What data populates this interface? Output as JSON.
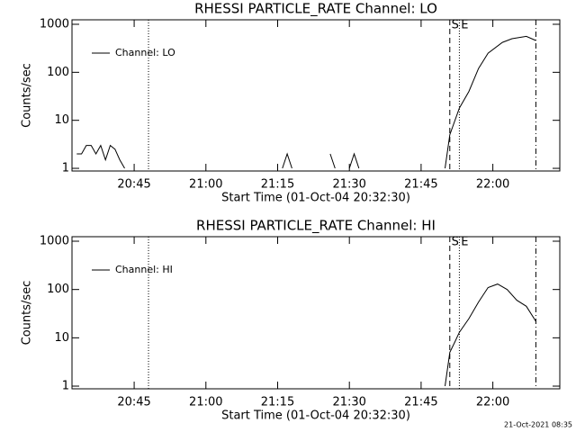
{
  "chart_data": [
    {
      "type": "line",
      "title": "RHESSI PARTICLE_RATE Channel: LO",
      "xlabel": "Start Time (01-Oct-04 20:32:30)",
      "ylabel": "Counts/sec",
      "log_y": true,
      "ylim": [
        0.88,
        1240
      ],
      "yticks": [
        1,
        10,
        100,
        1000
      ],
      "xlim": [
        "20:32",
        "22:14"
      ],
      "xticks": [
        "20:45",
        "21:00",
        "21:15",
        "21:30",
        "21:45",
        "22:00"
      ],
      "legend": "upper left",
      "x": [
        "20:33",
        "20:34",
        "20:35",
        "20:36",
        "20:37",
        "20:38",
        "20:39",
        "20:40",
        "20:41",
        "20:42",
        "20:43",
        "21:15",
        "21:16",
        "21:17",
        "21:18",
        "21:25",
        "21:26",
        "21:27",
        "21:29",
        "21:30",
        "21:31",
        "21:32",
        "21:49",
        "21:50",
        "21:51",
        "21:53",
        "21:55",
        "21:57",
        "21:59",
        "22:02",
        "22:04",
        "22:07",
        "22:09"
      ],
      "series": [
        {
          "name": "Channel: LO",
          "color": "#000000",
          "values": [
            2,
            2,
            3,
            3,
            2,
            3,
            1.5,
            3,
            2.5,
            1.5,
            1,
            null,
            1,
            2,
            1,
            null,
            2,
            1,
            null,
            1,
            2,
            1,
            null,
            1,
            5,
            18,
            40,
            120,
            250,
            420,
            500,
            560,
            460
          ]
        }
      ],
      "markers": [
        {
          "x": "20:48",
          "style": "dotted"
        },
        {
          "x": "21:51",
          "style": "dashed",
          "label": "S"
        },
        {
          "x": "21:53",
          "style": "dotted",
          "label": "E"
        },
        {
          "x": "22:09",
          "style": "dashdot"
        }
      ]
    },
    {
      "type": "line",
      "title": "RHESSI PARTICLE_RATE Channel: HI",
      "xlabel": "Start Time (01-Oct-04 20:32:30)",
      "ylabel": "Counts/sec",
      "log_y": true,
      "ylim": [
        0.88,
        1240
      ],
      "yticks": [
        1,
        10,
        100,
        1000
      ],
      "xlim": [
        "20:32",
        "22:14"
      ],
      "xticks": [
        "20:45",
        "21:00",
        "21:15",
        "21:30",
        "21:45",
        "22:00"
      ],
      "legend": "upper left",
      "x": [
        "21:50",
        "21:51",
        "21:52",
        "21:53",
        "21:55",
        "21:57",
        "21:59",
        "22:01",
        "22:03",
        "22:05",
        "22:07",
        "22:09"
      ],
      "series": [
        {
          "name": "Channel: HI",
          "color": "#000000",
          "values": [
            1,
            5,
            8,
            13,
            25,
            55,
            110,
            130,
            100,
            60,
            45,
            22
          ]
        }
      ],
      "markers": [
        {
          "x": "20:48",
          "style": "dotted"
        },
        {
          "x": "21:51",
          "style": "dashed",
          "label": "S"
        },
        {
          "x": "21:53",
          "style": "dotted",
          "label": "E"
        },
        {
          "x": "22:09",
          "style": "dashdot"
        }
      ]
    }
  ],
  "footer": "21-Oct-2021 08:35"
}
